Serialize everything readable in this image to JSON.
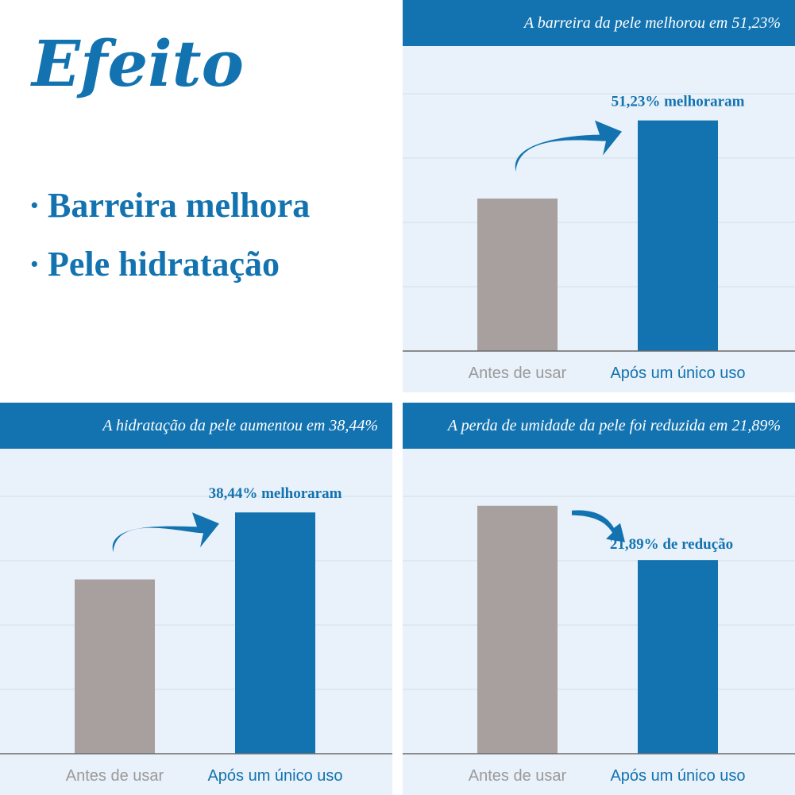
{
  "headline": "Efeito",
  "bullets": [
    {
      "dot": "·",
      "label": "Barreira melhora"
    },
    {
      "dot": "·",
      "label": "Pele hidratação"
    }
  ],
  "colors": {
    "accent": "#1273b0",
    "before_bar": "#a8a09f",
    "panel_bg": "#e9f1fa",
    "grid": "#d5dde8",
    "axis": "#6a6a6a"
  },
  "chart_data": [
    {
      "type": "bar",
      "title": "A barreira da pele melhorou em 51,23%",
      "categories": [
        "Antes de usar",
        "Após um único uso"
      ],
      "values": [
        100,
        151.23
      ],
      "annotation": "51,23% melhoraram",
      "arrow": "up",
      "ylim": [
        0,
        200
      ],
      "grid": true
    },
    {
      "type": "bar",
      "title": "A hidratação da pele aumentou em 38,44%",
      "categories": [
        "Antes de usar",
        "Após um único uso"
      ],
      "values": [
        100,
        138.44
      ],
      "annotation": "38,44% melhoraram",
      "arrow": "up",
      "ylim": [
        0,
        175
      ],
      "grid": true
    },
    {
      "type": "bar",
      "title": "A perda de umidade da pele foi reduzida em 21,89%",
      "categories": [
        "Antes de usar",
        "Após um único uso"
      ],
      "values": [
        100,
        78.11
      ],
      "annotation": "21,89% de redução",
      "arrow": "down",
      "ylim": [
        0,
        123
      ],
      "grid": true
    }
  ]
}
